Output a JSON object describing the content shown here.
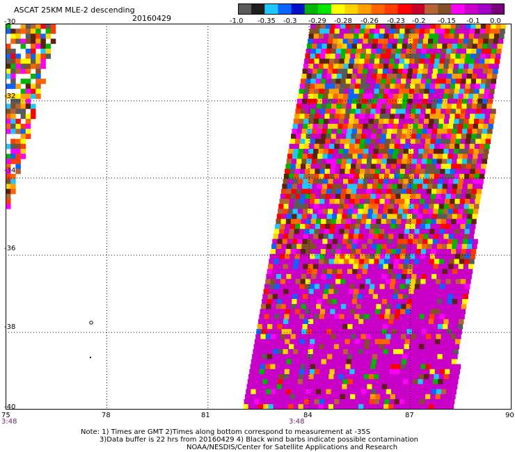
{
  "header": {
    "title": "ASCAT 25KM MLE-2 descending",
    "date": "20160429"
  },
  "colorbar": {
    "labels": [
      "-1.0",
      "-0.35",
      "-0.3",
      "-0.29",
      "-0.28",
      "-0.26",
      "-0.23",
      "-0.2",
      "-0.15",
      "-0.1",
      "0.0"
    ],
    "colors": [
      "#5a5a5a",
      "#1e1e1e",
      "#1ec8ff",
      "#0a64ff",
      "#0010c8",
      "#00b400",
      "#00e600",
      "#ffff00",
      "#ffd200",
      "#ffa000",
      "#ff6400",
      "#ff3c00",
      "#ff0000",
      "#c80028",
      "#b46432",
      "#825028",
      "#ff00ff",
      "#c800c8",
      "#a000c8",
      "#780078"
    ]
  },
  "map": {
    "lon_range": [
      75,
      90
    ],
    "lat_range": [
      -40,
      -30
    ],
    "lat_labels": [
      "-30",
      "-32",
      "-34",
      "-36",
      "-38",
      "-40"
    ],
    "lon_labels": [
      "75",
      "78",
      "81",
      "84",
      "87",
      "90"
    ],
    "time_labels": [
      "3:48",
      "3:48"
    ],
    "swath_palette": [
      "#c800c8",
      "#c800c8",
      "#c800c8",
      "#ff00ff",
      "#ff0000",
      "#ff3c00",
      "#ff6400",
      "#ffa000",
      "#ffd200",
      "#ffff00",
      "#b46432",
      "#825028",
      "#5a2010",
      "#00b400",
      "#0a64ff",
      "#1ec8ff",
      "#5a5a5a"
    ]
  },
  "notes": {
    "line1": "Note: 1) Times are GMT 2)Times along bottom correspond to measurement at -35S",
    "line2": "3)Data buffer is 22 hrs from 20160429 4) Black wind barbs indicate possible contamination",
    "line3": "NOAA/NESDIS/Center for Satellite Applications and Research"
  }
}
